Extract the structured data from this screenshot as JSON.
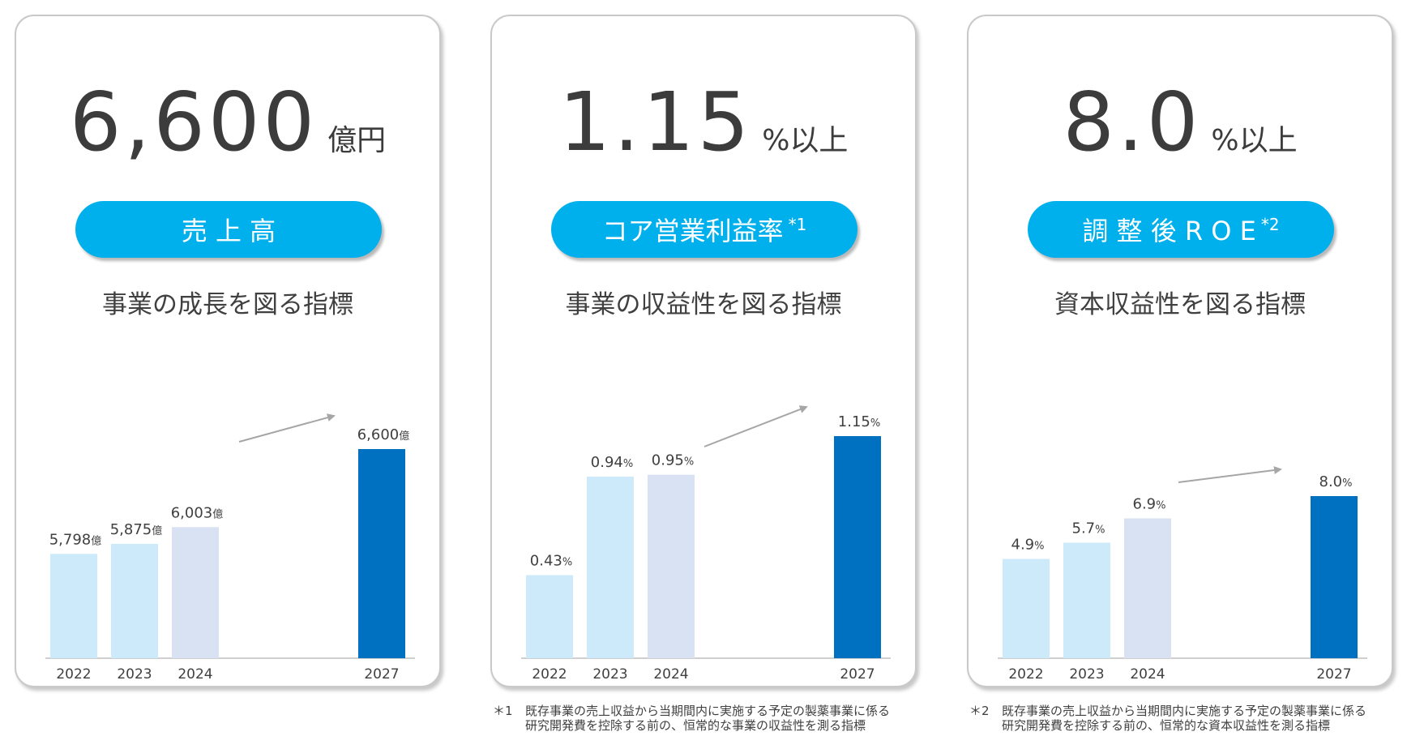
{
  "colors": {
    "pill": "#00b0ec",
    "bar_2022": "#cdeafb",
    "bar_2023": "#cdeafb",
    "bar_2024": "#d9e2f3",
    "bar_2027": "#0070c0",
    "arrow": "#a6a6a6"
  },
  "cards": [
    {
      "headline_value": "6,600",
      "headline_unit": "億円",
      "pill_label": "売 上 高",
      "pill_note": "",
      "subtitle": "事業の成長を図る指標"
    },
    {
      "headline_value": "1.15",
      "headline_unit": "%以上",
      "pill_label": "コア営業利益率",
      "pill_note": "*1",
      "subtitle": "事業の収益性を図る指標"
    },
    {
      "headline_value": "8.0",
      "headline_unit": "%以上",
      "pill_label": "調 整 後 R O E",
      "pill_note": "*2",
      "subtitle": "資本収益性を図る指標"
    }
  ],
  "chart_data": [
    {
      "type": "bar",
      "categories": [
        "2022",
        "2023",
        "2024",
        "2027"
      ],
      "values": [
        5798,
        5875,
        6003,
        6600
      ],
      "value_labels": [
        "5,798",
        "5,875",
        "6,003",
        "6,600"
      ],
      "value_unit": "億"
    },
    {
      "type": "bar",
      "categories": [
        "2022",
        "2023",
        "2024",
        "2027"
      ],
      "values": [
        0.43,
        0.94,
        0.95,
        1.15
      ],
      "value_labels": [
        "0.43",
        "0.94",
        "0.95",
        "1.15"
      ],
      "value_unit": "%"
    },
    {
      "type": "bar",
      "categories": [
        "2022",
        "2023",
        "2024",
        "2027"
      ],
      "values": [
        4.9,
        5.7,
        6.9,
        8.0
      ],
      "value_labels": [
        "4.9",
        "5.7",
        "6.9",
        "8.0"
      ],
      "value_unit": "%"
    }
  ],
  "footnotes": [
    {
      "mark": "＊1",
      "line1": "既存事業の売上収益から当期間内に実施する予定の製薬事業に係る",
      "line2": "研究開発費を控除する前の、恒常的な事業の収益性を測る指標"
    },
    {
      "mark": "＊2",
      "line1": "既存事業の売上収益から当期間内に実施する予定の製薬事業に係る",
      "line2": "研究開発費を控除する前の、恒常的な資本収益性を測る指標"
    }
  ]
}
